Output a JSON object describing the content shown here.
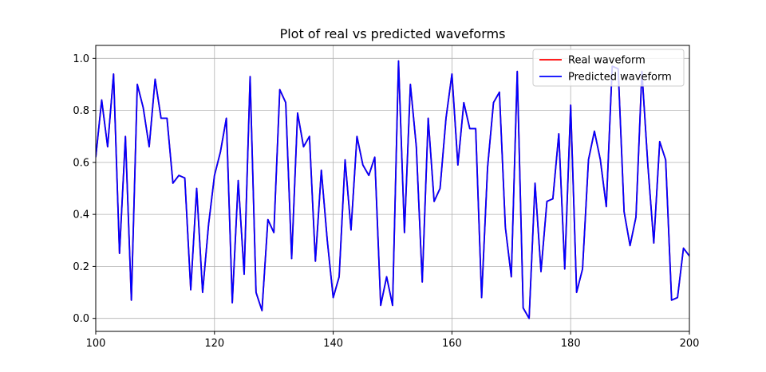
{
  "chart_data": {
    "type": "line",
    "title": "Plot of real vs predicted waveforms",
    "xlabel": "",
    "ylabel": "",
    "xlim": [
      100,
      200
    ],
    "ylim": [
      -0.05,
      1.05
    ],
    "xticks": [
      "100",
      "120",
      "140",
      "160",
      "180",
      "200"
    ],
    "yticks": [
      "0.0",
      "0.2",
      "0.4",
      "0.6",
      "0.8",
      "1.0"
    ],
    "grid": true,
    "legend_position": "top-right",
    "x_start": 100,
    "series": [
      {
        "name": "Real waveform",
        "color": "#ff0000",
        "values": [
          0.62,
          0.84,
          0.66,
          0.94,
          0.25,
          0.7,
          0.07,
          0.9,
          0.81,
          0.66,
          0.92,
          0.77,
          0.77,
          0.52,
          0.55,
          0.54,
          0.11,
          0.5,
          0.1,
          0.36,
          0.55,
          0.64,
          0.77,
          0.06,
          0.53,
          0.17,
          0.93,
          0.1,
          0.03,
          0.38,
          0.33,
          0.88,
          0.83,
          0.23,
          0.79,
          0.66,
          0.7,
          0.22,
          0.57,
          0.3,
          0.08,
          0.16,
          0.61,
          0.34,
          0.7,
          0.59,
          0.55,
          0.62,
          0.05,
          0.16,
          0.05,
          0.99,
          0.33,
          0.9,
          0.66,
          0.14,
          0.77,
          0.45,
          0.5,
          0.77,
          0.94,
          0.59,
          0.83,
          0.73,
          0.73,
          0.08,
          0.58,
          0.83,
          0.87,
          0.35,
          0.16,
          0.95,
          0.04,
          0.0,
          0.52,
          0.18,
          0.45,
          0.46,
          0.71,
          0.19,
          0.82,
          0.1,
          0.19,
          0.61,
          0.72,
          0.61,
          0.43,
          0.97,
          0.96,
          0.41,
          0.28,
          0.39,
          0.95,
          0.59,
          0.29,
          0.68,
          0.61,
          0.07,
          0.08,
          0.27,
          0.24
        ]
      },
      {
        "name": "Predicted waveform",
        "color": "#0000ff",
        "values": [
          0.62,
          0.84,
          0.66,
          0.94,
          0.25,
          0.7,
          0.07,
          0.9,
          0.81,
          0.66,
          0.92,
          0.77,
          0.77,
          0.52,
          0.55,
          0.54,
          0.11,
          0.5,
          0.1,
          0.36,
          0.55,
          0.64,
          0.77,
          0.06,
          0.53,
          0.17,
          0.93,
          0.1,
          0.03,
          0.38,
          0.33,
          0.88,
          0.83,
          0.23,
          0.79,
          0.66,
          0.7,
          0.22,
          0.57,
          0.3,
          0.08,
          0.16,
          0.61,
          0.34,
          0.7,
          0.59,
          0.55,
          0.62,
          0.05,
          0.16,
          0.05,
          0.99,
          0.33,
          0.9,
          0.66,
          0.14,
          0.77,
          0.45,
          0.5,
          0.77,
          0.94,
          0.59,
          0.83,
          0.73,
          0.73,
          0.08,
          0.58,
          0.83,
          0.87,
          0.35,
          0.16,
          0.95,
          0.04,
          0.0,
          0.52,
          0.18,
          0.45,
          0.46,
          0.71,
          0.19,
          0.82,
          0.1,
          0.19,
          0.61,
          0.72,
          0.61,
          0.43,
          0.97,
          0.96,
          0.41,
          0.28,
          0.39,
          0.95,
          0.59,
          0.29,
          0.68,
          0.61,
          0.07,
          0.08,
          0.27,
          0.24
        ]
      }
    ]
  }
}
